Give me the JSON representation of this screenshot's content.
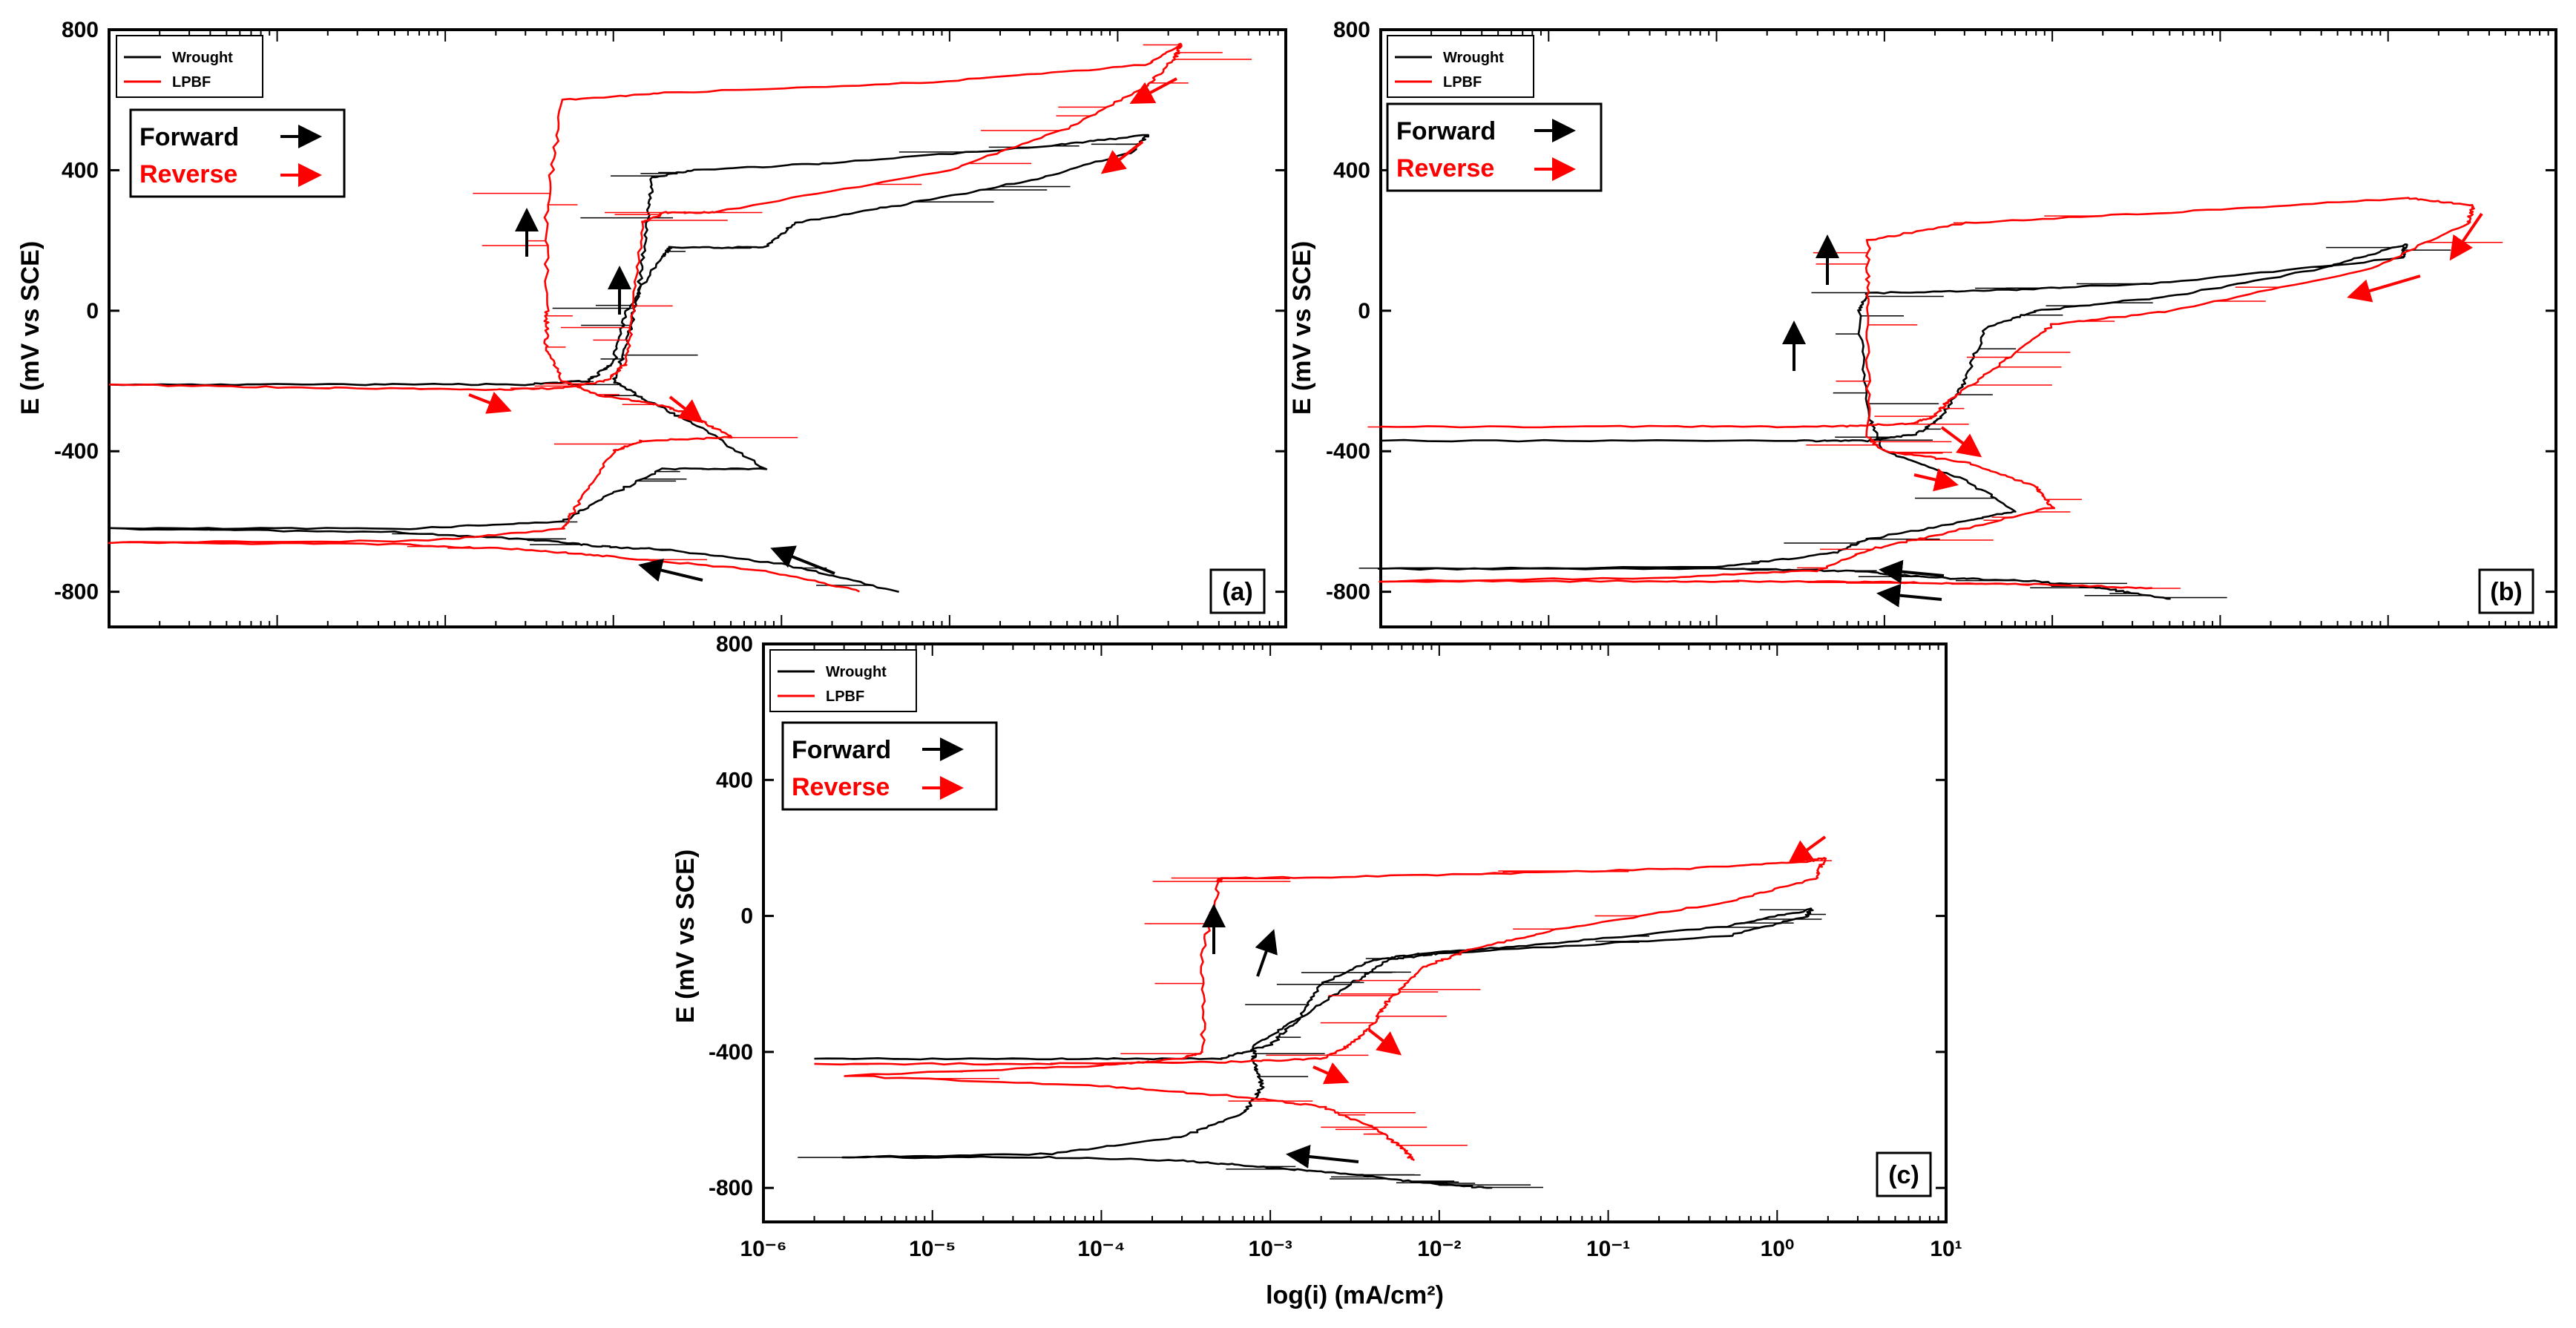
{
  "chart_data": [
    {
      "id": "a",
      "type": "line",
      "panel_label": "(a)",
      "ylabel": "E (mV vs SCE)",
      "xlabel": "",
      "xscale": "log",
      "xlim": [
        1e-06,
        10
      ],
      "ylim": [
        -900,
        800
      ],
      "yticks": [
        -800,
        -400,
        0,
        400,
        800
      ],
      "show_x_tick_labels": false,
      "legend": {
        "entries": [
          {
            "label": "Wrought",
            "color": "#000000"
          },
          {
            "label": "LPBF",
            "color": "#ff0000"
          }
        ],
        "position": "top-left"
      },
      "direction_legend": {
        "forward": "Forward",
        "reverse": "Reverse",
        "position": "upper-left"
      },
      "series": [
        {
          "name": "Wrought",
          "color": "#000000",
          "x": [
            0.05,
            0.01,
            0.002,
            0.0008,
            0.0003,
            5e-05,
            1e-06,
            6e-05,
            0.0005,
            0.0009,
            0.002,
            0.008,
            0.003,
            0.0015,
            0.001,
            0.0012,
            0.0014,
            0.0016,
            0.0017,
            0.003,
            0.02,
            0.4,
            1.5,
            1.2,
            0.3,
            0.05,
            0.012,
            0.008,
            0.0022,
            0.0019,
            0.0012,
            0.001,
            0.0007,
            0.0003,
            3e-05,
            1e-06
          ],
          "y": [
            -800,
            -720,
            -680,
            -670,
            -650,
            -630,
            -620,
            -620,
            -600,
            -530,
            -450,
            -450,
            -320,
            -250,
            -200,
            -100,
            50,
            250,
            380,
            400,
            420,
            470,
            500,
            450,
            370,
            300,
            250,
            180,
            180,
            150,
            0,
            -150,
            -200,
            -210,
            -210,
            -210
          ]
        },
        {
          "name": "LPBF",
          "color": "#ff0000",
          "x": [
            0.03,
            0.008,
            0.001,
            0.0003,
            5e-05,
            1e-06,
            8e-05,
            0.0005,
            0.0006,
            0.001,
            0.0015,
            0.005,
            0.003,
            0.002,
            0.0008,
            0.0005,
            0.0004,
            0.0004,
            0.0004,
            0.0005,
            0.002,
            0.08,
            1.5,
            2.4,
            2.2,
            1.5,
            0.5,
            0.1,
            0.004,
            0.002,
            0.0015,
            0.0013,
            0.0012,
            0.0009,
            0.0005,
            0.0002,
            2e-05,
            1e-06
          ],
          "y": [
            -800,
            -740,
            -700,
            -680,
            -665,
            -660,
            -655,
            -620,
            -560,
            -400,
            -370,
            -360,
            -300,
            -270,
            -240,
            -200,
            -100,
            0,
            300,
            600,
            620,
            650,
            700,
            760,
            720,
            640,
            520,
            400,
            280,
            280,
            250,
            0,
            -150,
            -200,
            -220,
            -225,
            -220,
            -210
          ]
        }
      ]
    },
    {
      "id": "b",
      "type": "line",
      "panel_label": "(b)",
      "ylabel": "E (mV vs SCE)",
      "xlabel": "",
      "xscale": "log",
      "xlim": [
        1e-06,
        10
      ],
      "ylim": [
        -900,
        800
      ],
      "yticks": [
        -800,
        -400,
        0,
        400,
        800
      ],
      "show_x_tick_labels": false,
      "legend": {
        "entries": [
          {
            "label": "Wrought",
            "color": "#000000"
          },
          {
            "label": "LPBF",
            "color": "#ff0000"
          }
        ],
        "position": "top-left"
      },
      "direction_legend": {
        "forward": "Forward",
        "reverse": "Reverse",
        "position": "upper-left"
      },
      "series": [
        {
          "name": "Wrought",
          "color": "#000000",
          "x": [
            0.05,
            0.02,
            0.008,
            0.002,
            0.0006,
            0.0001,
            1e-06,
            0.0001,
            0.0005,
            0.0008,
            0.003,
            0.006,
            0.003,
            0.001,
            0.0008,
            0.0007,
            0.0008,
            0.006,
            0.05,
            1.2,
            1.3,
            0.4,
            0.05,
            0.008,
            0.004,
            0.003,
            0.0022,
            0.0016,
            0.0008,
            0.0003,
            1e-06
          ],
          "y": [
            -820,
            -790,
            -770,
            -760,
            -740,
            -735,
            -735,
            -730,
            -690,
            -650,
            -600,
            -570,
            -480,
            -400,
            -300,
            0,
            50,
            60,
            80,
            150,
            190,
            120,
            40,
            0,
            -50,
            -200,
            -300,
            -350,
            -370,
            -370,
            -370
          ]
        },
        {
          "name": "LPBF",
          "color": "#ff0000",
          "x": [
            0.04,
            0.01,
            0.002,
            0.0003,
            5e-05,
            1e-06,
            5e-05,
            0.0004,
            0.0008,
            0.002,
            0.01,
            0.008,
            0.003,
            0.001,
            0.0008,
            0.0008,
            0.0008,
            0.003,
            0.05,
            1.3,
            3.2,
            3.0,
            0.8,
            0.05,
            0.01,
            0.005,
            0.0025,
            0.002,
            0.0015,
            0.0005,
            5e-05,
            1e-06
          ],
          "y": [
            -790,
            -780,
            -775,
            -770,
            -770,
            -770,
            -760,
            -740,
            -680,
            -640,
            -560,
            -500,
            -430,
            -400,
            -360,
            0,
            200,
            250,
            280,
            320,
            300,
            250,
            120,
            0,
            -40,
            -150,
            -250,
            -300,
            -320,
            -330,
            -330,
            -330
          ]
        }
      ]
    },
    {
      "id": "c",
      "type": "line",
      "panel_label": "(c)",
      "ylabel": "E (mV vs SCE)",
      "xlabel": "log(i) (mA/cm²)",
      "xscale": "log",
      "xlim": [
        1e-06,
        10
      ],
      "ylim": [
        -900,
        800
      ],
      "yticks": [
        -800,
        -400,
        0,
        400,
        800
      ],
      "show_x_tick_labels": true,
      "xtick_labels": [
        "10⁻⁶",
        "10⁻⁵",
        "10⁻⁴",
        "10⁻³",
        "10⁻²",
        "10⁻¹",
        "10⁰",
        "10¹"
      ],
      "xtick_values": [
        1e-06,
        1e-05,
        0.0001,
        0.001,
        0.01,
        0.1,
        1,
        10
      ],
      "legend": {
        "entries": [
          {
            "label": "Wrought",
            "color": "#000000"
          },
          {
            "label": "LPBF",
            "color": "#ff0000"
          }
        ],
        "position": "top-left"
      },
      "direction_legend": {
        "forward": "Forward",
        "reverse": "Reverse",
        "position": "upper-left"
      },
      "series": [
        {
          "name": "Wrought",
          "color": "#000000",
          "x": [
            0.02,
            0.01,
            0.003,
            0.001,
            0.0003,
            5e-05,
            3e-06,
            5e-05,
            0.0003,
            0.0007,
            0.0009,
            0.0008,
            0.0008,
            0.0015,
            0.003,
            0.005,
            0.01,
            0.5,
            1.5,
            1.6,
            0.5,
            0.05,
            0.008,
            0.004,
            0.002,
            0.0015,
            0.001,
            0.0005,
            5e-05,
            2e-06
          ],
          "y": [
            -800,
            -790,
            -760,
            -740,
            -720,
            -710,
            -710,
            -700,
            -650,
            -580,
            -500,
            -430,
            -380,
            -300,
            -200,
            -130,
            -110,
            -60,
            0,
            20,
            -30,
            -80,
            -110,
            -130,
            -200,
            -300,
            -380,
            -420,
            -420,
            -420
          ]
        },
        {
          "name": "LPBF",
          "color": "#ff0000",
          "x": [
            0.007,
            0.006,
            0.004,
            0.002,
            0.0006,
            0.0001,
            3e-06,
            0.0001,
            0.0003,
            0.0004,
            0.0004,
            0.0005,
            0.0005,
            0.01,
            0.3,
            1.5,
            1.9,
            1.7,
            0.5,
            0.05,
            0.015,
            0.008,
            0.005,
            0.004,
            0.003,
            0.002,
            0.0005,
            5e-05,
            2e-06
          ],
          "y": [
            -720,
            -680,
            -620,
            -560,
            -530,
            -500,
            -470,
            -440,
            -420,
            -400,
            -100,
            100,
            110,
            120,
            140,
            160,
            170,
            110,
            40,
            -40,
            -100,
            -150,
            -250,
            -320,
            -380,
            -420,
            -430,
            -435,
            -435
          ]
        }
      ]
    }
  ]
}
